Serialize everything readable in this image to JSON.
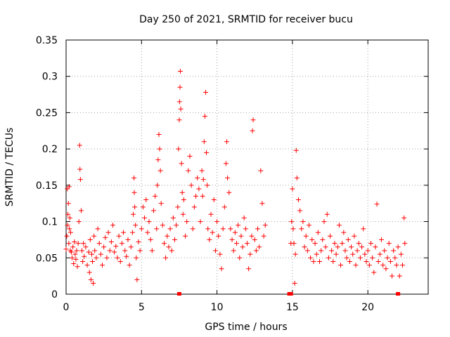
{
  "chart_data": {
    "type": "scatter",
    "title": "Day 250 of 2021, SRMTID for receiver bucu",
    "xlabel": "GPS time / hours",
    "ylabel": "SRMTID / TECUs",
    "xlim": [
      0,
      24
    ],
    "ylim": [
      0,
      0.35
    ],
    "xticks": [
      "0",
      "5",
      "10",
      "15",
      "20"
    ],
    "yticks": [
      "0",
      "0.05",
      "0.1",
      "0.15",
      "0.2",
      "0.25",
      "0.3",
      "0.35"
    ],
    "grid": true,
    "marker": "plus",
    "color": "#ff0000",
    "series": [
      {
        "name": "SRMTID",
        "points": [
          [
            0.0,
            0.062
          ],
          [
            0.05,
            0.08
          ],
          [
            0.08,
            0.145
          ],
          [
            0.1,
            0.095
          ],
          [
            0.12,
            0.11
          ],
          [
            0.15,
            0.125
          ],
          [
            0.18,
            0.07
          ],
          [
            0.2,
            0.148
          ],
          [
            0.22,
            0.09
          ],
          [
            0.25,
            0.105
          ],
          [
            0.28,
            0.06
          ],
          [
            0.3,
            0.085
          ],
          [
            0.35,
            0.058
          ],
          [
            0.4,
            0.05
          ],
          [
            0.45,
            0.065
          ],
          [
            0.5,
            0.042
          ],
          [
            0.55,
            0.072
          ],
          [
            0.6,
            0.055
          ],
          [
            0.65,
            0.048
          ],
          [
            0.7,
            0.06
          ],
          [
            0.75,
            0.038
          ],
          [
            0.8,
            0.07
          ],
          [
            0.85,
            0.1
          ],
          [
            0.9,
            0.205
          ],
          [
            0.92,
            0.172
          ],
          [
            0.95,
            0.158
          ],
          [
            1.0,
            0.115
          ],
          [
            1.05,
            0.06
          ],
          [
            1.1,
            0.045
          ],
          [
            1.15,
            0.07
          ],
          [
            1.2,
            0.052
          ],
          [
            1.3,
            0.065
          ],
          [
            1.4,
            0.04
          ],
          [
            1.5,
            0.058
          ],
          [
            1.55,
            0.03
          ],
          [
            1.6,
            0.075
          ],
          [
            1.65,
            0.02
          ],
          [
            1.7,
            0.055
          ],
          [
            1.75,
            0.045
          ],
          [
            1.8,
            0.015
          ],
          [
            1.85,
            0.08
          ],
          [
            1.9,
            0.06
          ],
          [
            2.0,
            0.05
          ],
          [
            2.1,
            0.09
          ],
          [
            2.2,
            0.07
          ],
          [
            2.3,
            0.055
          ],
          [
            2.4,
            0.04
          ],
          [
            2.5,
            0.065
          ],
          [
            2.6,
            0.078
          ],
          [
            2.7,
            0.05
          ],
          [
            2.8,
            0.085
          ],
          [
            2.9,
            0.06
          ],
          [
            3.0,
            0.072
          ],
          [
            3.1,
            0.095
          ],
          [
            3.2,
            0.058
          ],
          [
            3.3,
            0.066
          ],
          [
            3.4,
            0.05
          ],
          [
            3.5,
            0.08
          ],
          [
            3.6,
            0.045
          ],
          [
            3.7,
            0.07
          ],
          [
            3.8,
            0.085
          ],
          [
            3.9,
            0.06
          ],
          [
            4.0,
            0.052
          ],
          [
            4.1,
            0.075
          ],
          [
            4.2,
            0.04
          ],
          [
            4.3,
            0.065
          ],
          [
            4.4,
            0.085
          ],
          [
            4.45,
            0.11
          ],
          [
            4.5,
            0.16
          ],
          [
            4.52,
            0.14
          ],
          [
            4.55,
            0.12
          ],
          [
            4.6,
            0.095
          ],
          [
            4.65,
            0.05
          ],
          [
            4.7,
            0.02
          ],
          [
            4.8,
            0.072
          ],
          [
            4.9,
            0.06
          ],
          [
            5.0,
            0.09
          ],
          [
            5.1,
            0.12
          ],
          [
            5.2,
            0.105
          ],
          [
            5.3,
            0.13
          ],
          [
            5.4,
            0.085
          ],
          [
            5.5,
            0.1
          ],
          [
            5.6,
            0.075
          ],
          [
            5.7,
            0.06
          ],
          [
            5.8,
            0.115
          ],
          [
            5.9,
            0.135
          ],
          [
            6.0,
            0.09
          ],
          [
            6.05,
            0.15
          ],
          [
            6.1,
            0.185
          ],
          [
            6.15,
            0.22
          ],
          [
            6.2,
            0.2
          ],
          [
            6.25,
            0.17
          ],
          [
            6.3,
            0.125
          ],
          [
            6.4,
            0.095
          ],
          [
            6.5,
            0.07
          ],
          [
            6.6,
            0.05
          ],
          [
            6.7,
            0.08
          ],
          [
            6.8,
            0.065
          ],
          [
            6.9,
            0.09
          ],
          [
            7.0,
            0.06
          ],
          [
            7.1,
            0.105
          ],
          [
            7.2,
            0.075
          ],
          [
            7.3,
            0.095
          ],
          [
            7.4,
            0.12
          ],
          [
            7.45,
            0.2
          ],
          [
            7.5,
            0.24
          ],
          [
            7.52,
            0.265
          ],
          [
            7.55,
            0.285
          ],
          [
            7.57,
            0.307
          ],
          [
            7.6,
            0.255
          ],
          [
            7.65,
            0.18
          ],
          [
            7.7,
            0.14
          ],
          [
            7.75,
            0.11
          ],
          [
            7.8,
            0.13
          ],
          [
            7.9,
            0.08
          ],
          [
            8.0,
            0.1
          ],
          [
            8.1,
            0.17
          ],
          [
            8.2,
            0.19
          ],
          [
            8.3,
            0.15
          ],
          [
            8.4,
            0.09
          ],
          [
            8.5,
            0.12
          ],
          [
            8.6,
            0.135
          ],
          [
            8.7,
            0.16
          ],
          [
            8.8,
            0.145
          ],
          [
            8.9,
            0.1
          ],
          [
            9.0,
            0.17
          ],
          [
            9.05,
            0.135
          ],
          [
            9.1,
            0.158
          ],
          [
            9.15,
            0.21
          ],
          [
            9.2,
            0.245
          ],
          [
            9.25,
            0.278
          ],
          [
            9.3,
            0.195
          ],
          [
            9.35,
            0.15
          ],
          [
            9.4,
            0.09
          ],
          [
            9.5,
            0.075
          ],
          [
            9.6,
            0.11
          ],
          [
            9.7,
            0.085
          ],
          [
            9.8,
            0.13
          ],
          [
            9.9,
            0.06
          ],
          [
            10.0,
            0.1
          ],
          [
            10.1,
            0.08
          ],
          [
            10.2,
            0.055
          ],
          [
            10.3,
            0.035
          ],
          [
            10.4,
            0.09
          ],
          [
            10.5,
            0.12
          ],
          [
            10.6,
            0.18
          ],
          [
            10.65,
            0.21
          ],
          [
            10.7,
            0.16
          ],
          [
            10.8,
            0.14
          ],
          [
            10.9,
            0.09
          ],
          [
            11.0,
            0.075
          ],
          [
            11.1,
            0.06
          ],
          [
            11.2,
            0.085
          ],
          [
            11.3,
            0.07
          ],
          [
            11.4,
            0.095
          ],
          [
            11.5,
            0.05
          ],
          [
            11.6,
            0.08
          ],
          [
            11.7,
            0.065
          ],
          [
            11.8,
            0.105
          ],
          [
            11.9,
            0.09
          ],
          [
            12.0,
            0.07
          ],
          [
            12.1,
            0.035
          ],
          [
            12.2,
            0.055
          ],
          [
            12.3,
            0.08
          ],
          [
            12.35,
            0.225
          ],
          [
            12.4,
            0.24
          ],
          [
            12.5,
            0.075
          ],
          [
            12.6,
            0.06
          ],
          [
            12.7,
            0.09
          ],
          [
            12.8,
            0.065
          ],
          [
            12.9,
            0.17
          ],
          [
            13.0,
            0.125
          ],
          [
            13.1,
            0.08
          ],
          [
            13.2,
            0.095
          ],
          [
            14.9,
            0.07
          ],
          [
            14.95,
            0.1
          ],
          [
            15.0,
            0.145
          ],
          [
            15.05,
            0.09
          ],
          [
            15.1,
            0.07
          ],
          [
            15.15,
            0.015
          ],
          [
            15.2,
            0.055
          ],
          [
            15.25,
            0.198
          ],
          [
            15.3,
            0.16
          ],
          [
            15.4,
            0.13
          ],
          [
            15.5,
            0.115
          ],
          [
            15.6,
            0.09
          ],
          [
            15.7,
            0.1
          ],
          [
            15.8,
            0.065
          ],
          [
            15.9,
            0.08
          ],
          [
            16.0,
            0.06
          ],
          [
            16.1,
            0.095
          ],
          [
            16.2,
            0.05
          ],
          [
            16.3,
            0.075
          ],
          [
            16.4,
            0.045
          ],
          [
            16.5,
            0.07
          ],
          [
            16.6,
            0.055
          ],
          [
            16.7,
            0.085
          ],
          [
            16.8,
            0.045
          ],
          [
            16.9,
            0.06
          ],
          [
            17.0,
            0.075
          ],
          [
            17.1,
            0.1
          ],
          [
            17.2,
            0.065
          ],
          [
            17.3,
            0.11
          ],
          [
            17.4,
            0.05
          ],
          [
            17.5,
            0.08
          ],
          [
            17.6,
            0.06
          ],
          [
            17.7,
            0.045
          ],
          [
            17.8,
            0.07
          ],
          [
            17.9,
            0.055
          ],
          [
            18.0,
            0.065
          ],
          [
            18.1,
            0.095
          ],
          [
            18.2,
            0.04
          ],
          [
            18.3,
            0.07
          ],
          [
            18.4,
            0.085
          ],
          [
            18.5,
            0.06
          ],
          [
            18.6,
            0.05
          ],
          [
            18.7,
            0.075
          ],
          [
            18.8,
            0.045
          ],
          [
            18.9,
            0.065
          ],
          [
            19.0,
            0.055
          ],
          [
            19.1,
            0.08
          ],
          [
            19.2,
            0.04
          ],
          [
            19.3,
            0.06
          ],
          [
            19.4,
            0.07
          ],
          [
            19.5,
            0.05
          ],
          [
            19.6,
            0.065
          ],
          [
            19.7,
            0.09
          ],
          [
            19.8,
            0.055
          ],
          [
            19.9,
            0.045
          ],
          [
            20.0,
            0.06
          ],
          [
            20.1,
            0.04
          ],
          [
            20.2,
            0.07
          ],
          [
            20.3,
            0.05
          ],
          [
            20.4,
            0.03
          ],
          [
            20.5,
            0.065
          ],
          [
            20.6,
            0.124
          ],
          [
            20.7,
            0.045
          ],
          [
            20.8,
            0.055
          ],
          [
            20.9,
            0.075
          ],
          [
            21.0,
            0.04
          ],
          [
            21.1,
            0.06
          ],
          [
            21.2,
            0.035
          ],
          [
            21.3,
            0.05
          ],
          [
            21.4,
            0.07
          ],
          [
            21.5,
            0.045
          ],
          [
            21.6,
            0.025
          ],
          [
            21.7,
            0.06
          ],
          [
            21.8,
            0.05
          ],
          [
            21.9,
            0.04
          ],
          [
            22.0,
            0.065
          ],
          [
            22.1,
            0.025
          ],
          [
            22.2,
            0.055
          ],
          [
            22.3,
            0.04
          ],
          [
            22.4,
            0.105
          ],
          [
            22.45,
            0.07
          ]
        ]
      }
    ],
    "bottom_markers_x": [
      7.5,
      14.8,
      14.9,
      22.0
    ]
  }
}
